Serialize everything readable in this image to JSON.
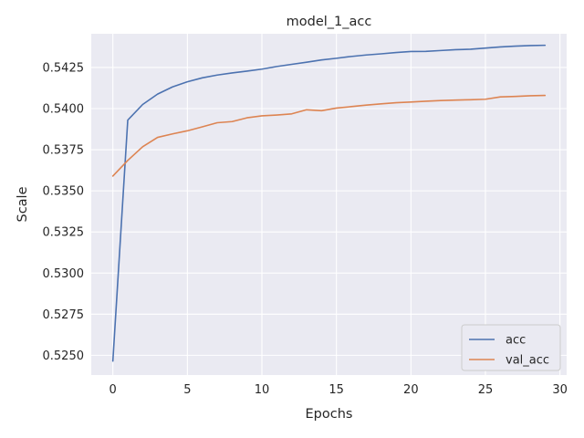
{
  "chart_data": {
    "type": "line",
    "title": "model_1_acc",
    "xlabel": "Epochs",
    "ylabel": "Scale",
    "xlim": [
      -1.45,
      30.45
    ],
    "ylim": [
      0.5238,
      0.54455
    ],
    "xticks": [
      0,
      5,
      10,
      15,
      20,
      25,
      30
    ],
    "yticks": [
      0.525,
      0.5275,
      0.53,
      0.5325,
      0.535,
      0.5375,
      0.54,
      0.5425
    ],
    "ytick_labels": [
      "0.5250",
      "0.5275",
      "0.5300",
      "0.5325",
      "0.5350",
      "0.5375",
      "0.5400",
      "0.5425"
    ],
    "grid": true,
    "legend_position": "lower-right",
    "x": [
      0,
      1,
      2,
      3,
      4,
      5,
      6,
      7,
      8,
      9,
      10,
      11,
      12,
      13,
      14,
      15,
      16,
      17,
      18,
      19,
      20,
      21,
      22,
      23,
      24,
      25,
      26,
      27,
      28,
      29
    ],
    "series": [
      {
        "name": "acc",
        "color": "#4c72b0",
        "values": [
          0.52465,
          0.5393,
          0.54025,
          0.54088,
          0.54132,
          0.54163,
          0.54187,
          0.54204,
          0.54217,
          0.54228,
          0.5424,
          0.54256,
          0.54269,
          0.54282,
          0.54296,
          0.54306,
          0.54317,
          0.54326,
          0.54333,
          0.54341,
          0.54347,
          0.54348,
          0.54353,
          0.54358,
          0.54361,
          0.54368,
          0.54375,
          0.5438,
          0.54383,
          0.54385
        ]
      },
      {
        "name": "val_acc",
        "color": "#dd8452",
        "values": [
          0.5359,
          0.53685,
          0.53768,
          0.53825,
          0.53846,
          0.53865,
          0.53889,
          0.53914,
          0.53921,
          0.53944,
          0.53956,
          0.53961,
          0.53968,
          0.53993,
          0.53987,
          0.54003,
          0.54012,
          0.54021,
          0.54029,
          0.54036,
          0.5404,
          0.54045,
          0.54049,
          0.54052,
          0.54054,
          0.54057,
          0.54071,
          0.54074,
          0.54078,
          0.5408
        ]
      }
    ]
  }
}
